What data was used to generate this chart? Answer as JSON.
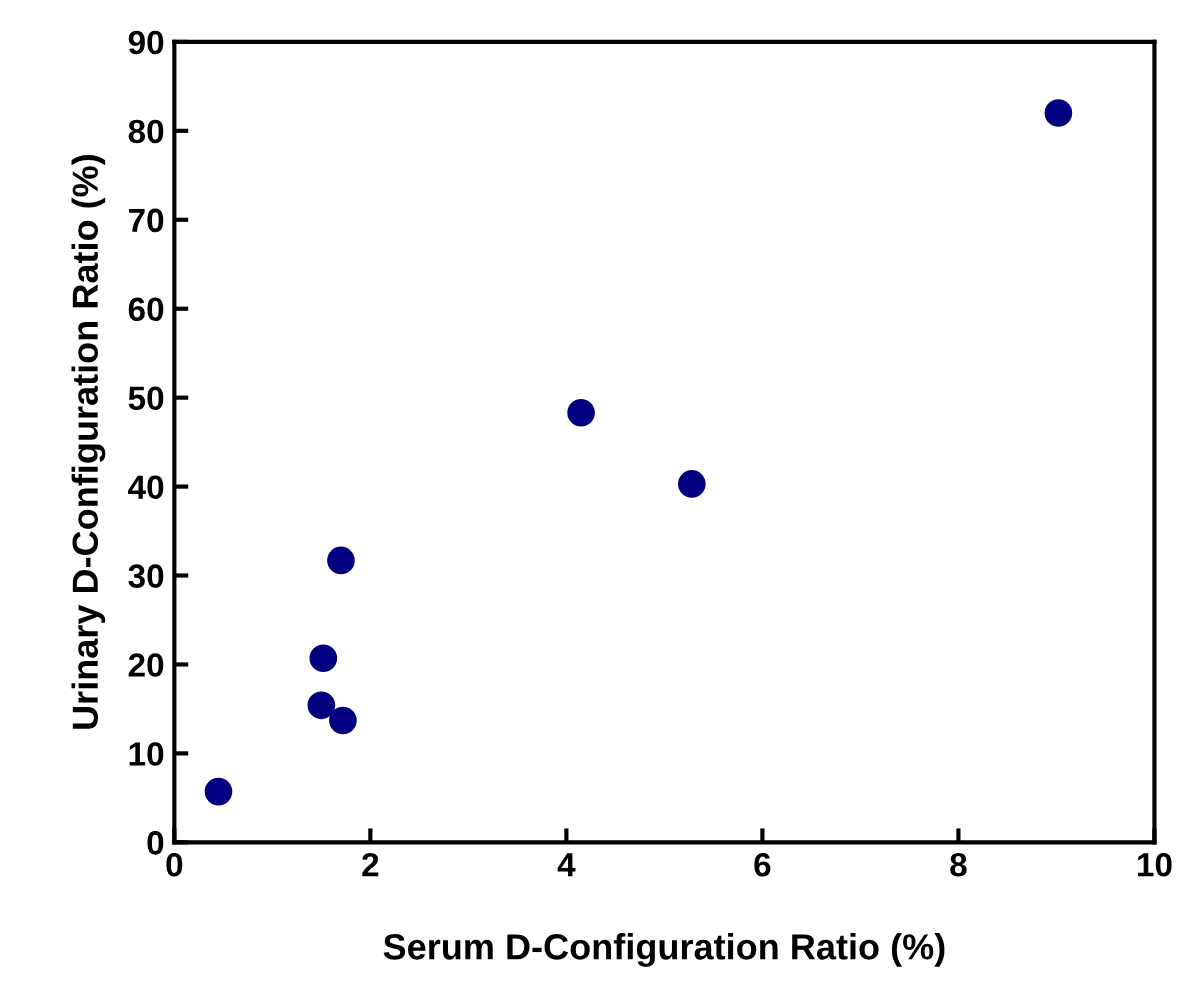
{
  "chart_data": {
    "type": "scatter",
    "xlabel": "Serum D-Configuration Ratio (%)",
    "ylabel": "Urinary D-Configuration Ratio (%)",
    "x": [
      0.45,
      1.5,
      1.52,
      1.7,
      1.72,
      4.15,
      5.28,
      9.02
    ],
    "series": [
      {
        "color": "#000080",
        "values": [
          5.7,
          15.4,
          20.7,
          31.7,
          13.7,
          48.3,
          40.3,
          82
        ]
      }
    ],
    "xlim": [
      0,
      10
    ],
    "xticks": [
      0,
      2,
      4,
      6,
      8,
      10
    ],
    "ylim": [
      0,
      90
    ],
    "yticks": [
      0,
      10,
      20,
      30,
      40,
      50,
      60,
      70,
      80,
      90
    ],
    "marker": "circle",
    "grid": false,
    "legend": false
  }
}
